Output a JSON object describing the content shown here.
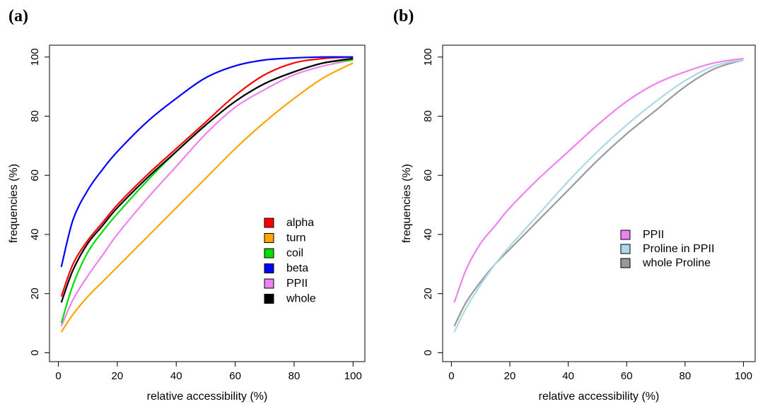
{
  "chart_data": [
    {
      "panel_label": "(a)",
      "type": "line",
      "xlabel": "relative accessibility (%)",
      "ylabel": "frequencies (%)",
      "xlim": [
        -3,
        104
      ],
      "ylim": [
        -3,
        104
      ],
      "xticks": [
        0,
        20,
        40,
        60,
        80,
        100
      ],
      "yticks": [
        0,
        20,
        40,
        60,
        80,
        100
      ],
      "legend_position": "lower-right",
      "series": [
        {
          "name": "turn",
          "color": "#FFA500",
          "x": [
            1,
            5,
            10,
            15,
            20,
            30,
            40,
            50,
            60,
            70,
            80,
            90,
            100
          ],
          "y": [
            7,
            13,
            19,
            24,
            29,
            39,
            49,
            59,
            69,
            78,
            86,
            93,
            98
          ]
        },
        {
          "name": "PPII",
          "color": "#EE82EE",
          "x": [
            1,
            5,
            10,
            15,
            20,
            30,
            40,
            50,
            60,
            70,
            80,
            90,
            100
          ],
          "y": [
            9,
            18,
            26,
            33,
            40,
            52,
            63,
            74,
            83,
            89,
            94,
            97,
            99
          ]
        },
        {
          "name": "coil",
          "color": "#00DD00",
          "x": [
            1,
            5,
            10,
            15,
            20,
            30,
            40,
            50,
            60,
            70,
            80,
            90,
            100
          ],
          "y": [
            10,
            23,
            34,
            41,
            47,
            58,
            68,
            77,
            85,
            91,
            95,
            98,
            99
          ]
        },
        {
          "name": "alpha",
          "color": "#FF0000",
          "x": [
            1,
            5,
            10,
            15,
            20,
            30,
            40,
            50,
            60,
            70,
            80,
            90,
            100
          ],
          "y": [
            19,
            30,
            38,
            44,
            50,
            60,
            69,
            78,
            87,
            94,
            98,
            99.5,
            100
          ]
        },
        {
          "name": "whole",
          "color": "#000000",
          "x": [
            1,
            5,
            10,
            15,
            20,
            30,
            40,
            50,
            60,
            70,
            80,
            90,
            100
          ],
          "y": [
            17,
            28,
            37,
            43,
            49,
            59,
            68,
            77,
            85,
            91,
            95,
            98,
            99.5
          ]
        },
        {
          "name": "beta",
          "color": "#0000FF",
          "x": [
            1,
            5,
            10,
            15,
            20,
            30,
            40,
            50,
            60,
            70,
            80,
            90,
            100
          ],
          "y": [
            29,
            45,
            55,
            62,
            68,
            78,
            86,
            93,
            97,
            99,
            99.7,
            100,
            100
          ]
        }
      ],
      "legend_order": [
        "alpha",
        "turn",
        "coil",
        "beta",
        "PPII",
        "whole"
      ]
    },
    {
      "panel_label": "(b)",
      "type": "line",
      "xlabel": "relative accessibility (%)",
      "ylabel": "frequencies (%)",
      "xlim": [
        -3,
        104
      ],
      "ylim": [
        -3,
        104
      ],
      "xticks": [
        0,
        20,
        40,
        60,
        80,
        100
      ],
      "yticks": [
        0,
        20,
        40,
        60,
        80,
        100
      ],
      "legend_position": "center-right",
      "series": [
        {
          "name": "whole Proline",
          "color": "#999999",
          "x": [
            1,
            5,
            10,
            15,
            20,
            30,
            40,
            50,
            60,
            70,
            80,
            90,
            100
          ],
          "y": [
            9,
            17,
            24,
            30,
            35,
            45,
            55,
            65,
            74,
            82,
            90,
            96,
            99
          ]
        },
        {
          "name": "Proline in PPII",
          "color": "#ADD8E6",
          "x": [
            1,
            5,
            10,
            15,
            20,
            30,
            40,
            50,
            60,
            70,
            80,
            90,
            100
          ],
          "y": [
            7,
            15,
            23,
            30,
            36,
            47,
            58,
            68,
            77,
            85,
            92,
            97,
            99
          ]
        },
        {
          "name": "PPII",
          "color": "#EE82EE",
          "x": [
            1,
            5,
            10,
            15,
            20,
            30,
            40,
            50,
            60,
            70,
            80,
            90,
            100
          ],
          "y": [
            17,
            28,
            37,
            43,
            49,
            59,
            68,
            77,
            85,
            91,
            95,
            98,
            99.5
          ]
        }
      ],
      "legend_order": [
        "PPII",
        "Proline in PPII",
        "whole Proline"
      ]
    }
  ]
}
